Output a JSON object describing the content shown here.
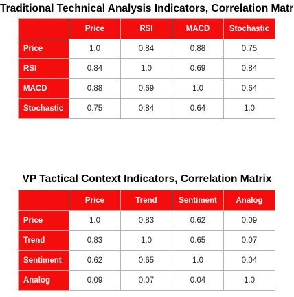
{
  "tables": [
    {
      "title": "Traditional Technical Analysis Indicators, Correlation Matrix",
      "columns": [
        "Price",
        "RSI",
        "MACD",
        "Stochastic"
      ],
      "rows": [
        {
          "label": "Price",
          "values": [
            "1.0",
            "0.84",
            "0.88",
            "0.75"
          ]
        },
        {
          "label": "RSI",
          "values": [
            "0.84",
            "1.0",
            "0.69",
            "0.84"
          ]
        },
        {
          "label": "MACD",
          "values": [
            "0.88",
            "0.69",
            "1.0",
            "0.64"
          ]
        },
        {
          "label": "Stochastic",
          "values": [
            "0.75",
            "0.84",
            "0.64",
            "1.0"
          ]
        }
      ]
    },
    {
      "title": "VP Tactical Context Indicators, Correlation Matrix",
      "columns": [
        "Price",
        "Trend",
        "Sentiment",
        "Analog"
      ],
      "rows": [
        {
          "label": "Price",
          "values": [
            "1.0",
            "0.83",
            "0.62",
            "0.09"
          ]
        },
        {
          "label": "Trend",
          "values": [
            "0.83",
            "1.0",
            "0.65",
            "0.07"
          ]
        },
        {
          "label": "Sentiment",
          "values": [
            "0.62",
            "0.65",
            "1.0",
            "0.04"
          ]
        },
        {
          "label": "Analog",
          "values": [
            "0.09",
            "0.07",
            "0.04",
            "1.0"
          ]
        }
      ]
    }
  ],
  "colors": {
    "header_red": "#f40d0d",
    "header_text": "#ffffff",
    "grid_border": "#b3b3b3"
  }
}
